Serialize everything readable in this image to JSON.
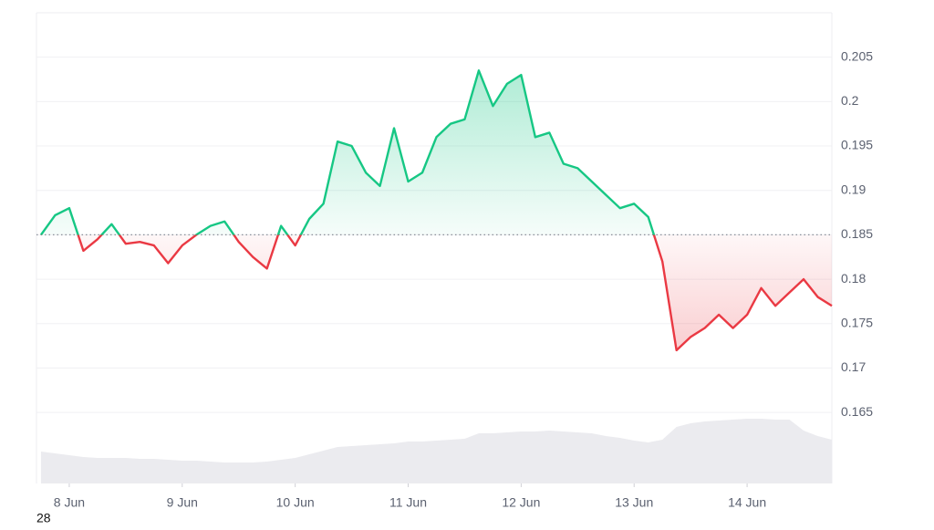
{
  "chart_data": {
    "type": "line",
    "x": [
      7.75,
      7.875,
      8.0,
      8.125,
      8.25,
      8.375,
      8.5,
      8.625,
      8.75,
      8.875,
      9.0,
      9.125,
      9.25,
      9.375,
      9.5,
      9.625,
      9.75,
      9.875,
      10.0,
      10.125,
      10.25,
      10.375,
      10.5,
      10.625,
      10.75,
      10.875,
      11.0,
      11.125,
      11.25,
      11.375,
      11.5,
      11.625,
      11.75,
      11.875,
      12.0,
      12.125,
      12.25,
      12.375,
      12.5,
      12.625,
      12.75,
      12.875,
      13.0,
      13.125,
      13.25,
      13.375,
      13.5,
      13.625,
      13.75,
      13.875,
      14.0,
      14.125,
      14.25,
      14.375,
      14.5,
      14.625,
      14.75
    ],
    "values": [
      0.185,
      0.1872,
      0.188,
      0.1832,
      0.1845,
      0.1862,
      0.184,
      0.1842,
      0.1838,
      0.1818,
      0.1838,
      0.185,
      0.186,
      0.1865,
      0.1842,
      0.1825,
      0.1812,
      0.186,
      0.1838,
      0.1868,
      0.1885,
      0.1955,
      0.195,
      0.192,
      0.1905,
      0.197,
      0.191,
      0.192,
      0.196,
      0.1975,
      0.198,
      0.2035,
      0.1995,
      0.202,
      0.203,
      0.196,
      0.1965,
      0.193,
      0.1925,
      0.191,
      0.1895,
      0.188,
      0.1885,
      0.187,
      0.182,
      0.172,
      0.1735,
      0.1745,
      0.176,
      0.1745,
      0.176,
      0.179,
      0.177,
      0.1785,
      0.18,
      0.178,
      0.177
    ],
    "baseline": 0.185,
    "colors": {
      "above": "#16c784",
      "below": "#ea3943"
    },
    "volume": {
      "color": "#ebebef",
      "ylim": [
        0,
        100
      ],
      "values": [
        35,
        33,
        31,
        29,
        28,
        28,
        28,
        27,
        27,
        26,
        25,
        25,
        24,
        23,
        23,
        23,
        24,
        26,
        28,
        32,
        36,
        40,
        41,
        42,
        43,
        44,
        46,
        46,
        47,
        48,
        49,
        55,
        55,
        56,
        57,
        57,
        58,
        57,
        56,
        55,
        52,
        50,
        47,
        45,
        48,
        62,
        66,
        68,
        69,
        70,
        71,
        71,
        70,
        70,
        58,
        52,
        48
      ]
    },
    "xlim": [
      7.71,
      14.75
    ],
    "xticks": [
      {
        "value": 8,
        "label": "8 Jun"
      },
      {
        "value": 9,
        "label": "9 Jun"
      },
      {
        "value": 10,
        "label": "10 Jun"
      },
      {
        "value": 11,
        "label": "11 Jun"
      },
      {
        "value": 12,
        "label": "12 Jun"
      },
      {
        "value": 13,
        "label": "13 Jun"
      },
      {
        "value": 14,
        "label": "14 Jun"
      }
    ],
    "ylim": [
      0.157,
      0.21
    ],
    "yticks": [
      0.165,
      0.17,
      0.175,
      0.18,
      0.185,
      0.19,
      0.195,
      0.2,
      0.205
    ],
    "grid": true,
    "annotation": "28"
  }
}
